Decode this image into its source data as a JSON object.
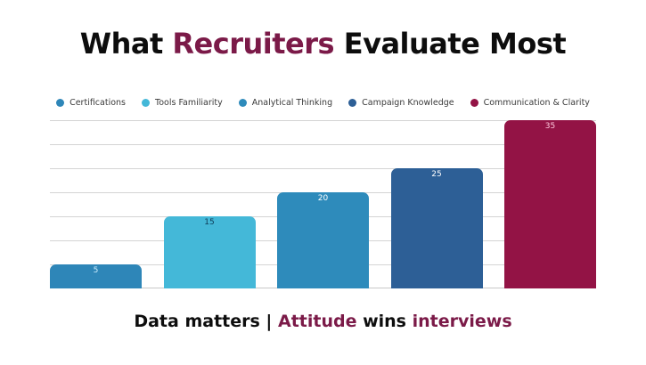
{
  "title": {
    "part1": "What ",
    "highlight": "Recruiters",
    "part2": " Evaluate Most"
  },
  "footer": {
    "part1": "Data matters | ",
    "highlight1": "Attitude",
    "part2": " wins ",
    "highlight2": "interviews"
  },
  "colors": {
    "accent": "#7b1a48",
    "text": "#0d0d0d",
    "grid": "#d4d4d4"
  },
  "chart_data": {
    "type": "bar",
    "title": "What Recruiters Evaluate Most",
    "xlabel": "",
    "ylabel": "",
    "ylim": [
      0,
      35
    ],
    "grid": true,
    "legend_position": "top",
    "categories": [
      "Certifications",
      "Tools Familiarity",
      "Analytical Thinking",
      "Campaign Knowledge",
      "Communication & Clarity"
    ],
    "values": [
      5,
      15,
      20,
      25,
      35
    ],
    "colors": [
      "#2e86b8",
      "#44b8d8",
      "#2e8bbb",
      "#2d5f96",
      "#931345"
    ],
    "label_colors": [
      "#cfefff",
      "#0d3a55",
      "#ffffff",
      "#ffffff",
      "#ffc8dd"
    ],
    "series": [
      {
        "name": "Certifications",
        "values": [
          5
        ]
      },
      {
        "name": "Tools Familiarity",
        "values": [
          15
        ]
      },
      {
        "name": "Analytical Thinking",
        "values": [
          20
        ]
      },
      {
        "name": "Campaign Knowledge",
        "values": [
          25
        ]
      },
      {
        "name": "Communication & Clarity",
        "values": [
          35
        ]
      }
    ]
  }
}
